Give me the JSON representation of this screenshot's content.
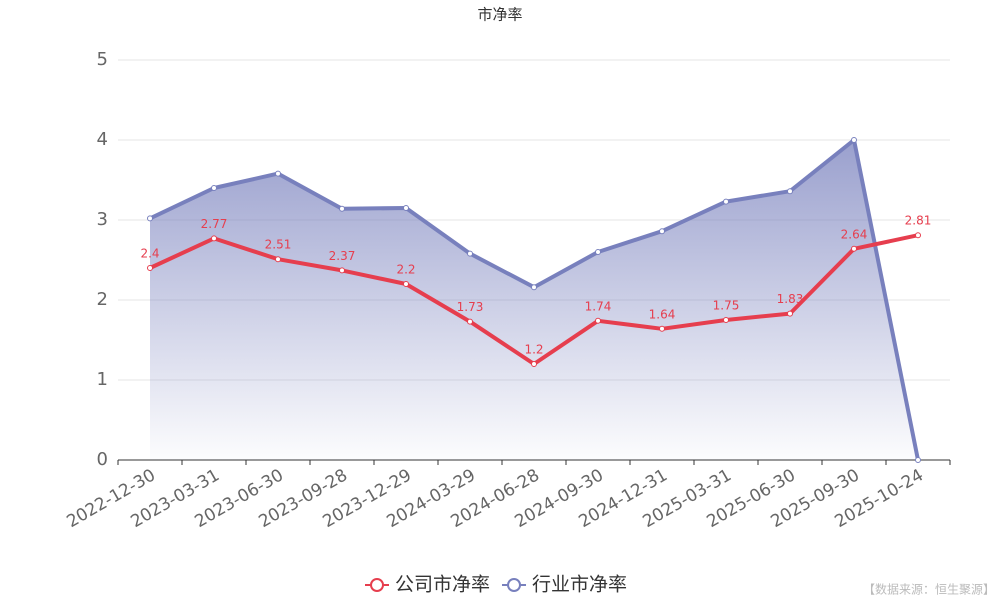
{
  "chart_data": {
    "type": "line",
    "title": "市净率",
    "categories": [
      "2022-12-30",
      "2023-03-31",
      "2023-06-30",
      "2023-09-28",
      "2023-12-29",
      "2024-03-29",
      "2024-06-28",
      "2024-09-30",
      "2024-12-31",
      "2025-03-31",
      "2025-06-30",
      "2025-09-30",
      "2025-10-24"
    ],
    "series": [
      {
        "name": "公司市净率",
        "color": "#e63e4e",
        "values": [
          2.4,
          2.77,
          2.51,
          2.37,
          2.2,
          1.73,
          1.2,
          1.74,
          1.64,
          1.75,
          1.83,
          2.64,
          2.81
        ]
      },
      {
        "name": "行业市净率",
        "color": "#7880bd",
        "area": true,
        "values": [
          3.02,
          3.4,
          3.58,
          3.14,
          3.15,
          2.58,
          2.16,
          2.6,
          2.86,
          3.23,
          3.36,
          4.0,
          0
        ]
      }
    ],
    "ylim": [
      0,
      5
    ],
    "yticks": [
      0,
      1,
      2,
      3,
      4,
      5
    ],
    "grid": true,
    "source": "【数据来源：恒生聚源】"
  }
}
